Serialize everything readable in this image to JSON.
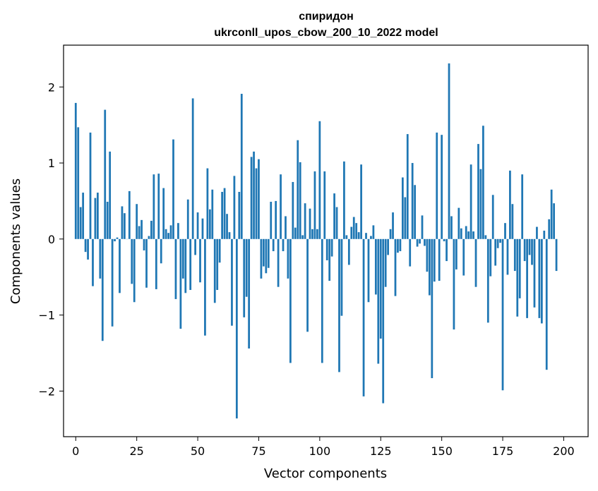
{
  "chart_data": {
    "type": "bar",
    "title_line1": "спиридон",
    "title_line2": "ukrconll_upos_cbow_200_10_2022 model",
    "xlabel": "Vector components",
    "ylabel": "Components values",
    "xlim": [
      -5,
      210
    ],
    "ylim": [
      -2.6,
      2.55
    ],
    "xticks": [
      0,
      25,
      50,
      75,
      100,
      125,
      150,
      175,
      200
    ],
    "xtick_labels": [
      "0",
      "25",
      "50",
      "75",
      "100",
      "125",
      "150",
      "175",
      "200"
    ],
    "yticks": [
      -2,
      -1,
      0,
      1,
      2
    ],
    "ytick_labels": [
      "−2",
      "−1",
      "0",
      "1",
      "2"
    ],
    "bar_color": "#1f77b4",
    "grid": false,
    "values": [
      1.79,
      1.47,
      0.42,
      0.61,
      -0.17,
      -0.27,
      1.4,
      -0.62,
      0.54,
      0.61,
      -0.52,
      -1.34,
      1.7,
      0.49,
      1.15,
      -1.15,
      -0.03,
      0.02,
      -0.71,
      0.43,
      0.34,
      0.0,
      0.63,
      -0.59,
      -0.83,
      0.46,
      0.17,
      0.25,
      -0.15,
      -0.64,
      0.04,
      0.24,
      0.85,
      -0.66,
      0.86,
      -0.32,
      0.67,
      0.13,
      0.08,
      0.18,
      1.31,
      -0.79,
      0.21,
      -1.18,
      -0.52,
      -0.71,
      0.52,
      -0.67,
      1.85,
      -0.21,
      0.35,
      -0.57,
      0.27,
      -1.27,
      0.93,
      0.39,
      0.65,
      -0.84,
      -0.67,
      -0.31,
      0.62,
      0.67,
      0.33,
      0.09,
      -1.14,
      0.83,
      -2.36,
      0.62,
      1.91,
      -1.03,
      -0.76,
      -1.44,
      1.08,
      1.15,
      0.93,
      1.05,
      -0.52,
      -0.36,
      -0.45,
      -0.38,
      0.49,
      -0.16,
      0.5,
      -0.63,
      0.85,
      -0.16,
      0.3,
      -0.52,
      -1.63,
      0.75,
      0.15,
      1.3,
      1.01,
      0.05,
      0.47,
      -1.22,
      0.4,
      0.13,
      0.89,
      0.13,
      1.55,
      -1.63,
      0.89,
      -0.28,
      -0.55,
      -0.23,
      0.6,
      0.42,
      -1.75,
      -1.01,
      1.02,
      0.05,
      -0.34,
      0.16,
      0.29,
      0.21,
      0.09,
      0.98,
      -2.07,
      0.08,
      -0.83,
      0.04,
      0.18,
      -0.73,
      -1.64,
      -1.31,
      -2.16,
      -0.63,
      -0.21,
      0.13,
      0.35,
      -0.75,
      -0.18,
      -0.16,
      0.81,
      0.55,
      1.38,
      -0.36,
      1.0,
      0.71,
      -0.1,
      -0.06,
      0.31,
      -0.09,
      -0.43,
      -0.74,
      -1.83,
      -0.56,
      1.4,
      -0.55,
      1.37,
      -0.03,
      -0.29,
      2.31,
      0.3,
      -1.19,
      -0.4,
      0.41,
      0.14,
      -0.48,
      0.17,
      0.1,
      0.98,
      0.1,
      -0.63,
      1.25,
      0.92,
      1.49,
      0.05,
      -1.1,
      -0.49,
      0.58,
      -0.35,
      -0.12,
      -0.05,
      -1.99,
      0.21,
      -0.47,
      0.9,
      0.46,
      -0.42,
      -1.02,
      -0.78,
      0.85,
      -0.29,
      -1.04,
      -0.21,
      -0.34,
      -0.9,
      0.16,
      -1.04,
      -1.11,
      0.11,
      -1.72,
      0.26,
      0.65,
      0.47,
      -0.42
    ]
  }
}
